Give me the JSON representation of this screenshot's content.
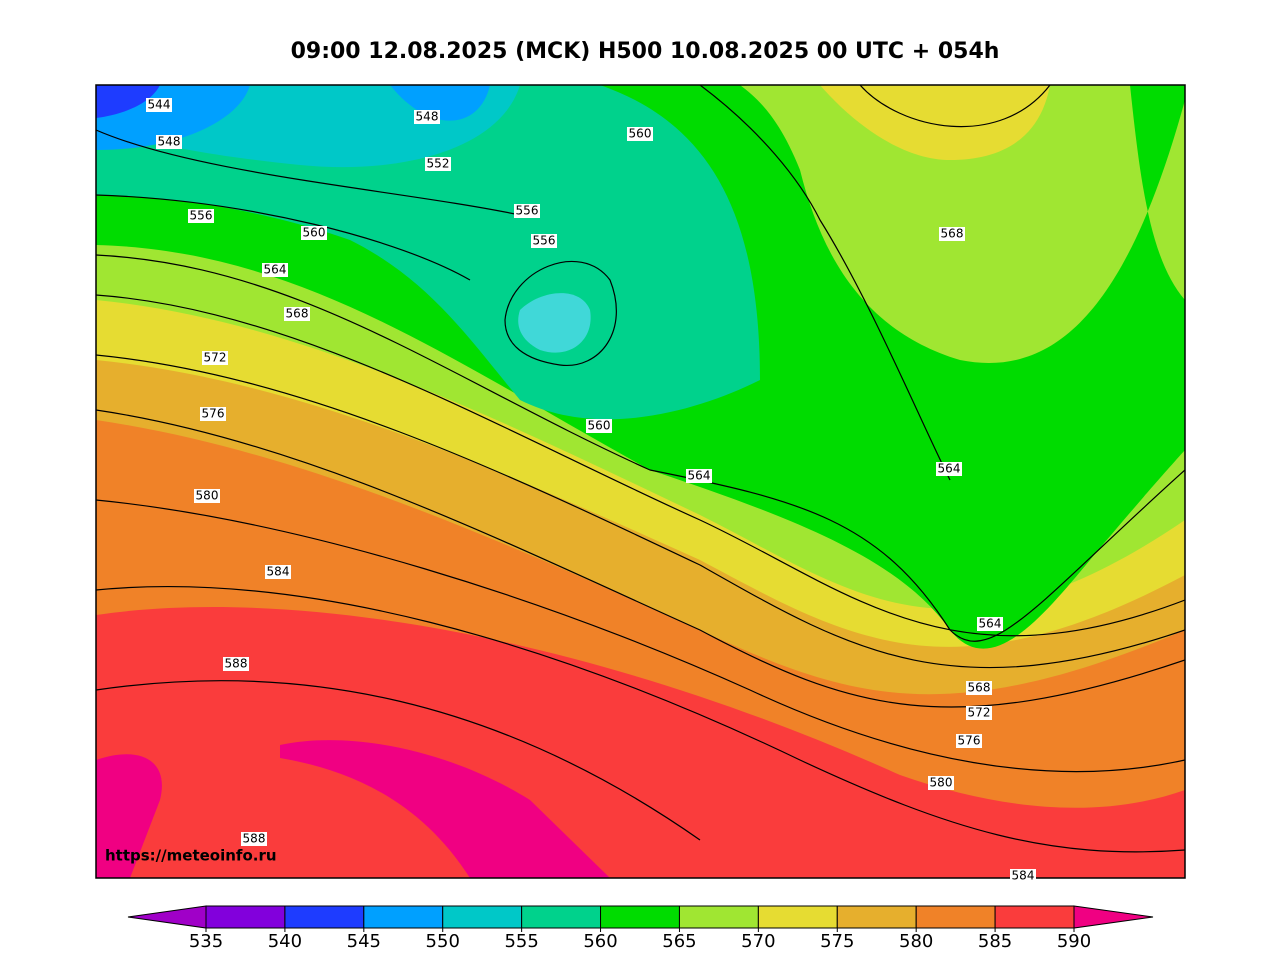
{
  "header": {
    "title": "09:00 12.08.2025 (MCK) H500  10.08.2025 00 UTC + 054h"
  },
  "map": {
    "source_url": "https://meteoinfo.ru",
    "contour_labels": [
      "544",
      "548",
      "548",
      "552",
      "560",
      "556",
      "560",
      "556",
      "556",
      "564",
      "568",
      "568",
      "572",
      "576",
      "560",
      "564",
      "564",
      "580",
      "584",
      "564",
      "588",
      "568",
      "572",
      "576",
      "580",
      "588",
      "584"
    ]
  },
  "colorbar": {
    "ticks": [
      535,
      540,
      545,
      550,
      555,
      560,
      565,
      570,
      575,
      580,
      585,
      590
    ],
    "colors": [
      "#8200dc",
      "#1e3cff",
      "#00a0ff",
      "#00c8c8",
      "#00d28c",
      "#00dc00",
      "#a0e632",
      "#e6dc32",
      "#e6af2d",
      "#f08228",
      "#fa3c3c"
    ],
    "under_color": "#a000c8",
    "over_color": "#f00082"
  }
}
